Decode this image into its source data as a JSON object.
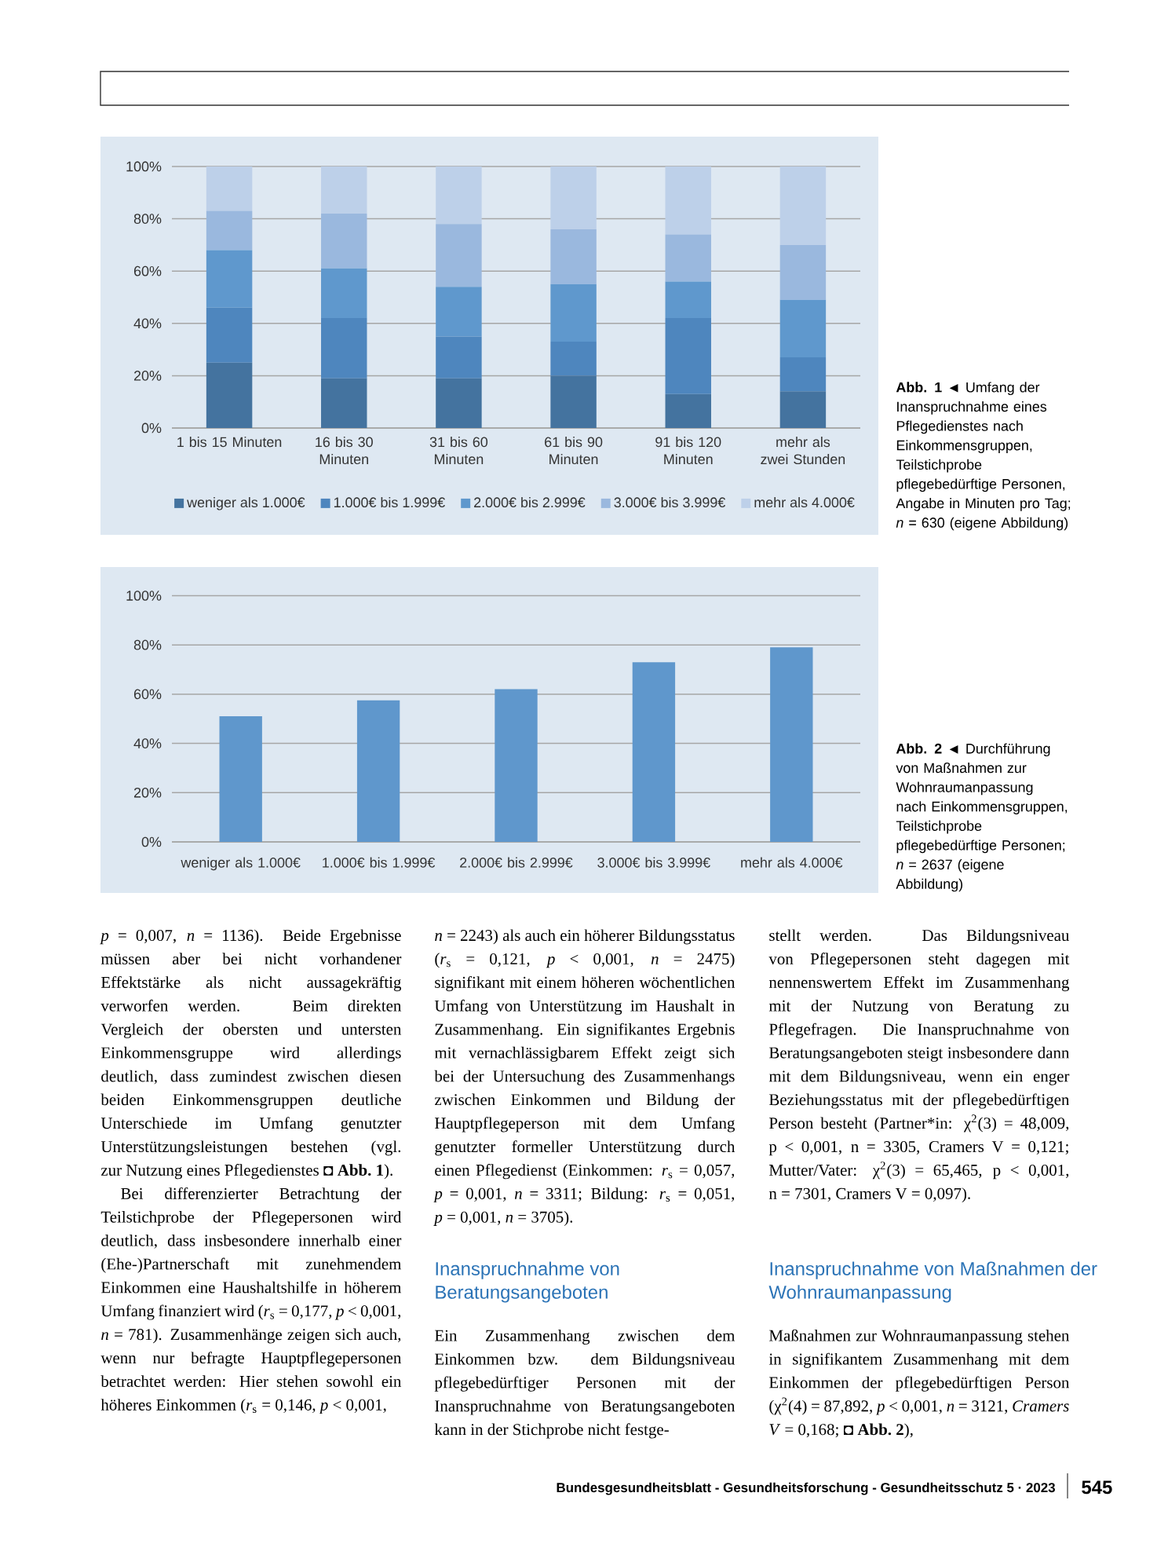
{
  "chart_data": [
    {
      "type": "bar",
      "stacked": true,
      "categories": [
        "1 bis 15 Minuten",
        "16 bis 30 Minuten",
        "31 bis 60 Minuten",
        "61 bis 90 Minuten",
        "91 bis 120 Minuten",
        "mehr als zwei Stunden"
      ],
      "series": [
        {
          "name": "weniger als 1.000€",
          "color": "#44739f",
          "values": [
            25,
            19,
            19,
            20,
            13,
            14
          ]
        },
        {
          "name": "1.000€ bis 1.999€",
          "color": "#4e86be",
          "values": [
            21,
            23,
            16,
            13,
            29,
            13
          ]
        },
        {
          "name": "2.000€ bis 2.999€",
          "color": "#5f98cd",
          "values": [
            22,
            19,
            19,
            22,
            14,
            22
          ]
        },
        {
          "name": "3.000€ bis 3.999€",
          "color": "#9ab8de",
          "values": [
            15,
            21,
            24,
            21,
            18,
            21
          ]
        },
        {
          "name": "mehr als 4.000€",
          "color": "#bdd0e9",
          "values": [
            17,
            18,
            22,
            24,
            26,
            30
          ]
        }
      ],
      "ylim": [
        0,
        100
      ],
      "yticks": [
        {
          "value": 0,
          "label": "0%"
        },
        {
          "value": 20,
          "label": "20%"
        },
        {
          "value": 40,
          "label": "40%"
        },
        {
          "value": 60,
          "label": "60%"
        },
        {
          "value": 80,
          "label": "80%"
        },
        {
          "value": 100,
          "label": "100%"
        }
      ],
      "grid": "y",
      "legend": "bottom",
      "annotations": [
        "**Abb. 1** ◄ Umfang der Inanspruchnahme eines Pflegedienstes nach Einkommensgruppen, Teilstichprobe pflegebedürftige Personen, Angabe in Minuten pro Tag; *n* = 630 (eigene Abbildung)"
      ]
    },
    {
      "type": "bar",
      "categories": [
        "weniger als 1.000€",
        "1.000€ bis 1.999€",
        "2.000€ bis 2.999€",
        "3.000€ bis 3.999€",
        "mehr als 4.000€"
      ],
      "values": [
        51,
        57.5,
        62,
        73,
        79
      ],
      "color": "#5f97cc",
      "ylim": [
        0,
        100
      ],
      "yticks": [
        {
          "value": 0,
          "label": "0%"
        },
        {
          "value": 20,
          "label": "20%"
        },
        {
          "value": 40,
          "label": "40%"
        },
        {
          "value": 60,
          "label": "60%"
        },
        {
          "value": 80,
          "label": "80%"
        },
        {
          "value": 100,
          "label": "100%"
        }
      ],
      "grid": "y",
      "annotations": [
        "**Abb. 2** ◄ Durchführung von Maßnahmen zur Wohnraumanpassung nach Einkommensgruppen, Teilstichprobe pflegebedürftige Personen; *n* = 2637 (eigene Abbildung)"
      ]
    },
    {
      "type": "other",
      "annotations": [
        "*p* = 0,007, *n* = 1136). Beide Ergebnisse müssen aber bei nicht vorhandener Effektstärke als nicht aussagekräftig verworfen werden. Beim direkten Vergleich der obersten und untersten Einkommensgruppe wird allerdings deutlich, dass zumindest zwischen diesen beiden Einkommensgruppen deutliche Unterschiede im Umfang genutzter Unterstützungsleistungen bestehen (vgl. zur Nutzung eines Pflegedienstes ◘ **Abb. 1**).",
        "Bei differenzierter Betrachtung der Teilstichprobe der Pflegepersonen wird deutlich, dass insbesondere innerhalb einer (Ehe-)Partnerschaft mit zunehmendem Einkommen eine Haushaltshilfe in höherem Umfang finanziert wird (*r*$_{s}$ = 0,177, *p* < 0,001, *n* = 781). Zusammenhänge zeigen sich auch, wenn nur befragte Hauptpflegepersonen betrachtet werden: Hier stehen sowohl ein höheres Einkommen (*r*$_{s}$ = 0,146, *p* < 0,001,",
        "*n* = 2243) als auch ein höherer Bildungsstatus (*r*$_{s}$ = 0,121, *p* < 0,001, *n* = 2475) signifikant mit einem höheren wöchentlichen Umfang von Unterstützung im Haushalt in Zusammenhang. Ein signifikantes Ergebnis mit vernachlässigbarem Effekt zeigt sich bei der Untersuchung des Zusammenhangs zwischen Einkommen und Bildung der Hauptpflegeperson mit dem Umfang genutzter formeller Unterstützung durch einen Pflegedienst (Einkommen: *r*$_{s}$ = 0,057, *p* = 0,001, *n* = 3311; Bildung: *r*$_{s}$ = 0,051, *p* = 0,001, *n* = 3705).",
        "Inanspruchnahme von Beratungsangeboten",
        "Ein Zusammenhang zwischen dem Einkommen bzw. dem Bildungsniveau pflegebedürftiger Personen mit der Inanspruchnahme von Beratungsangeboten kann in der Stichprobe nicht festge-",
        "stellt werden. Das Bildungsniveau von Pflegepersonen steht dagegen mit nennenswertem Effekt im Zusammenhang mit der Nutzung von Beratung zu Pflegefragen. Die Inanspruchnahme von Beratungsangeboten steigt insbesondere dann mit dem Bildungsniveau, wenn ein enger Beziehungsstatus mit der pflegebedürftigen Person besteht (Partner*in: χ$^{2}$(3) = 48,009, p < 0,001, n = 3305, Cramers V = 0,121; Mutter/Vater: χ$^{2}$(3) = 65,465, p < 0,001, n = 7301, Cramers V = 0,097).",
        "Inanspruchnahme von Maßnahmen der Wohnraumanpassung",
        "Maßnahmen zur Wohnraumanpassung stehen in signifikantem Zusammenhang mit dem Einkommen der pflegebedürftigen Person (χ$^{2}$(4) = 87,892, *p* < 0,001, *n* = 3121, *Cramers V* = 0,168; ◘ **Abb. 2**),",
        "Bundesgesundheitsblatt - Gesundheitsforschung - Gesundheitsschutz 5 · 2023",
        "545"
      ]
    }
  ]
}
